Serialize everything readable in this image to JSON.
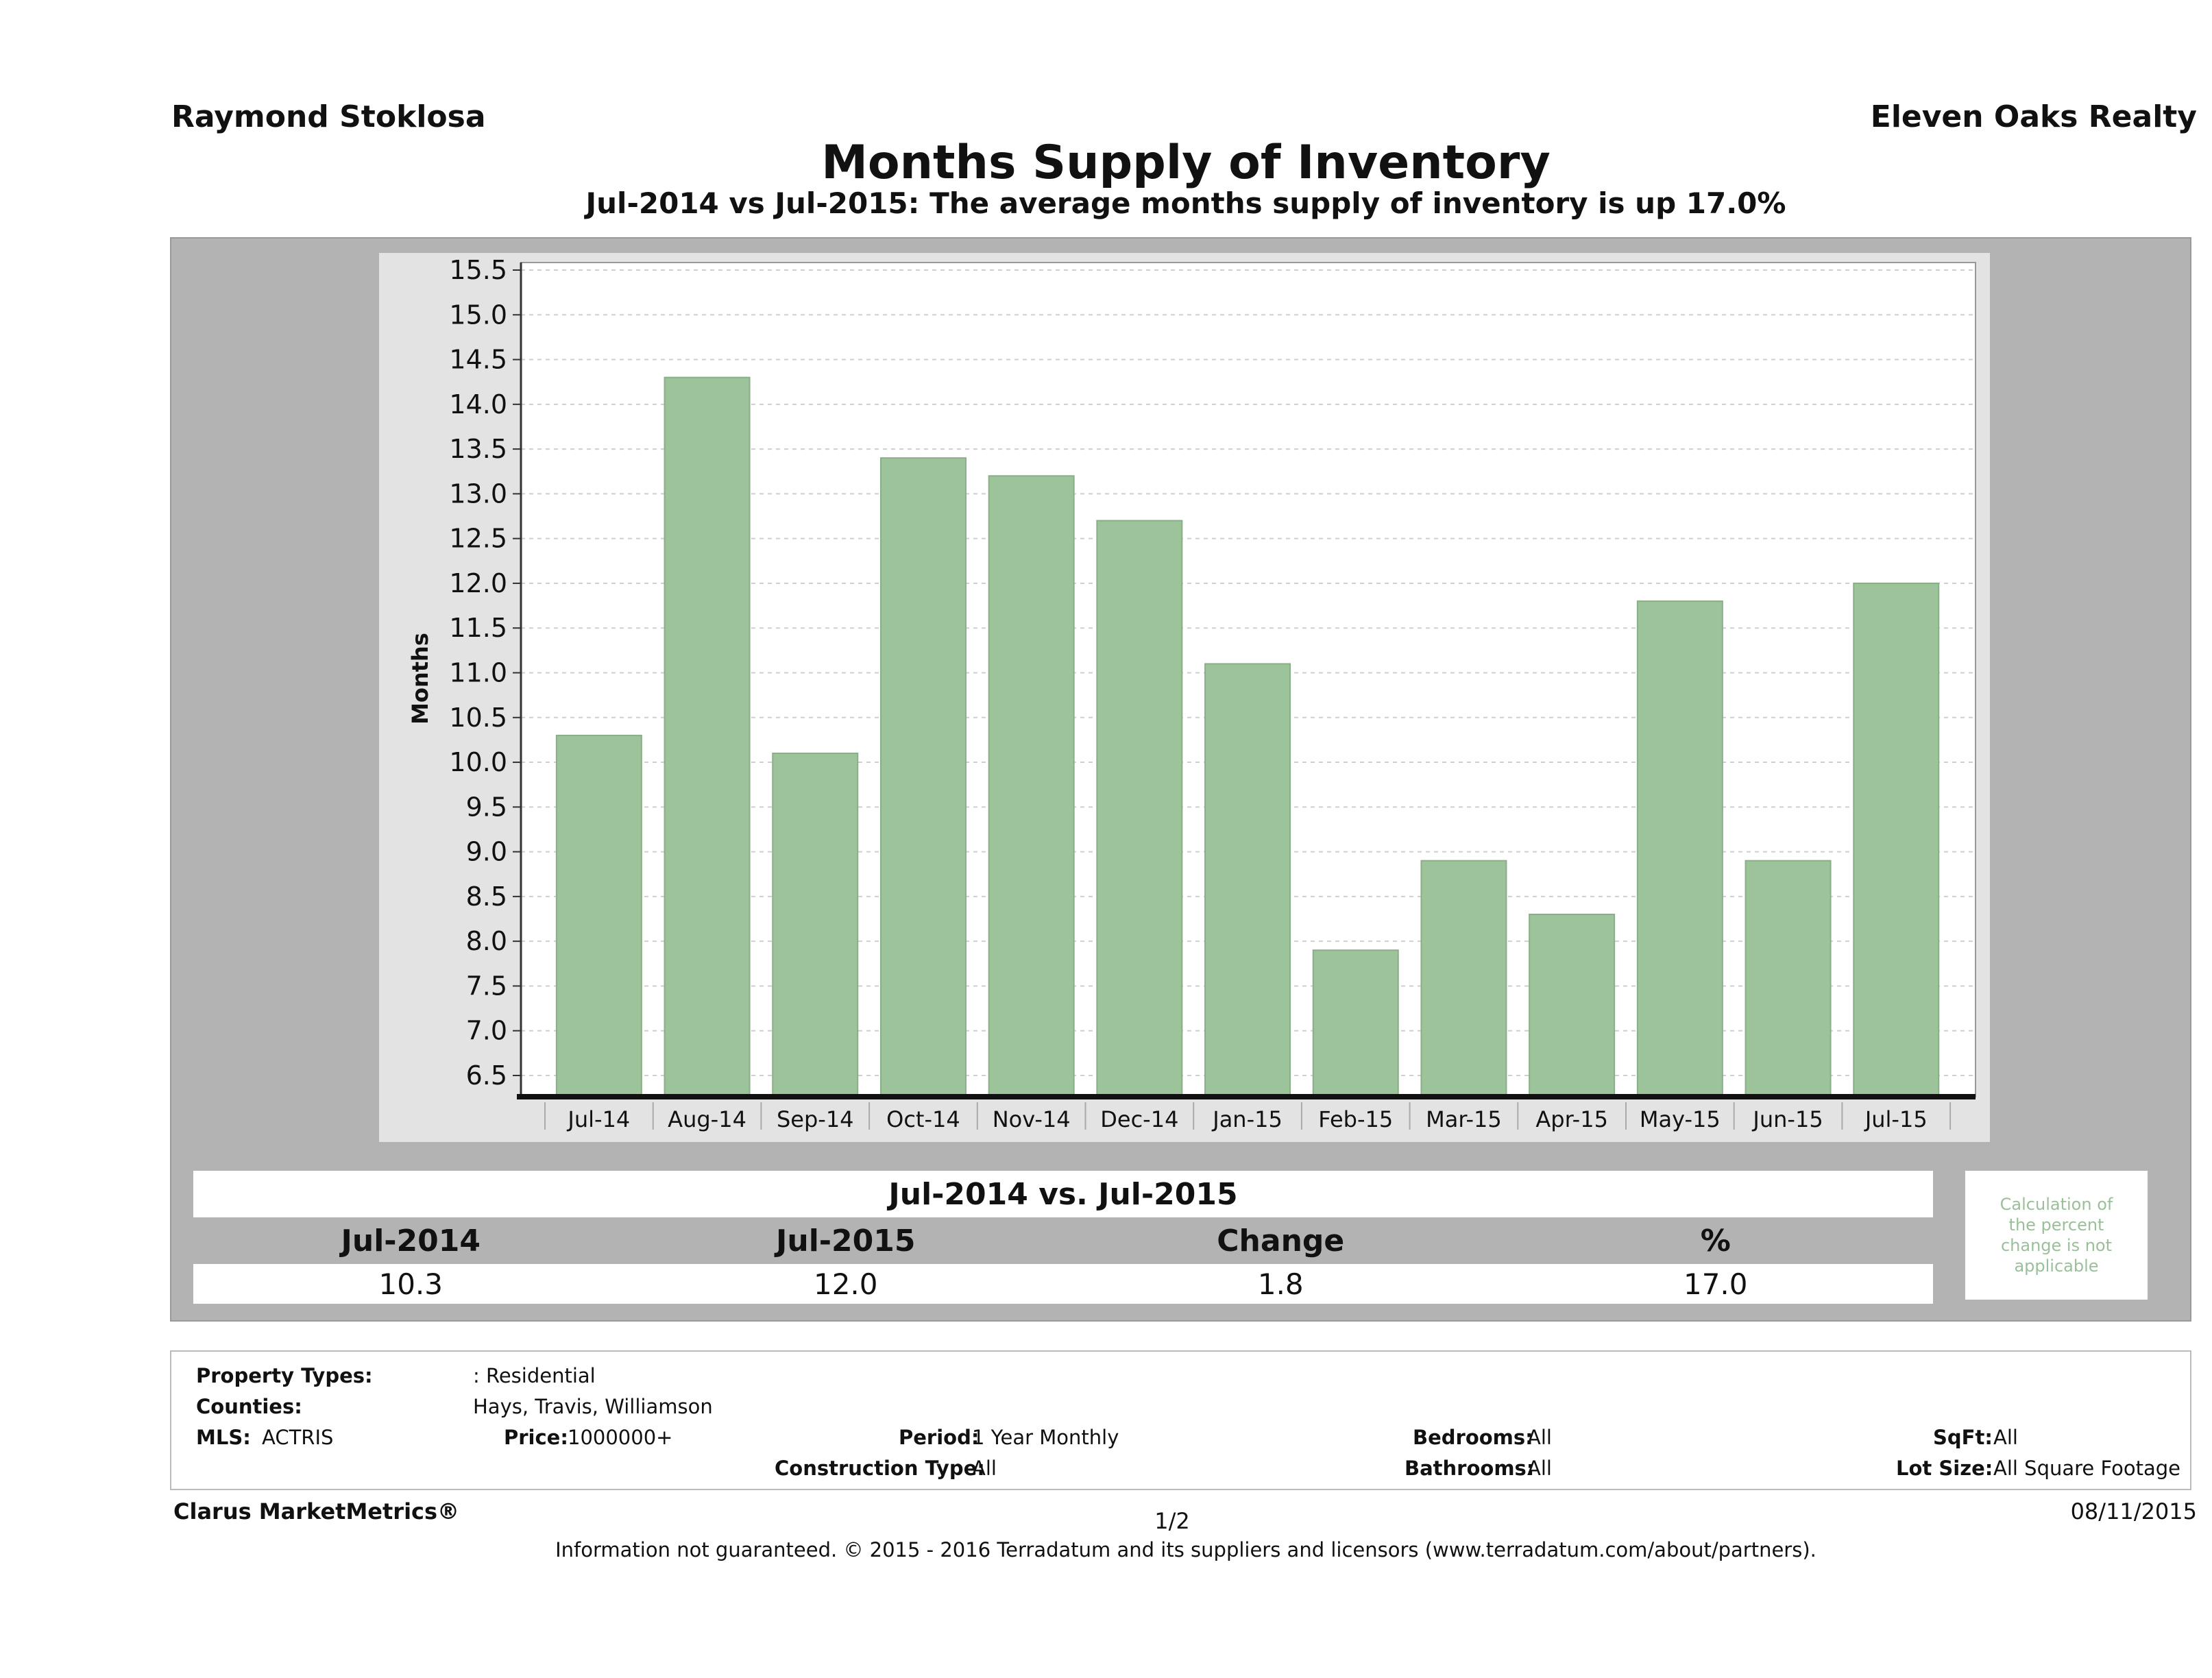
{
  "header": {
    "agent": "Raymond Stoklosa",
    "company": "Eleven Oaks Realty",
    "title": "Months Supply of Inventory",
    "subtitle": "Jul-2014 vs Jul-2015: The average months supply of inventory is up 17.0%"
  },
  "chart_data": {
    "type": "bar",
    "ylabel": "Months",
    "ylim": [
      6.5,
      15.5
    ],
    "yticks": [
      "15.5",
      "15.0",
      "14.5",
      "14.0",
      "13.5",
      "13.0",
      "12.5",
      "12.0",
      "11.5",
      "11.0",
      "10.5",
      "10.0",
      "9.5",
      "9.0",
      "8.5",
      "8.0",
      "7.5",
      "7.0",
      "6.5"
    ],
    "categories": [
      "Jul-14",
      "Aug-14",
      "Sep-14",
      "Oct-14",
      "Nov-14",
      "Dec-14",
      "Jan-15",
      "Feb-15",
      "Mar-15",
      "Apr-15",
      "May-15",
      "Jun-15",
      "Jul-15"
    ],
    "values": [
      10.3,
      14.3,
      10.1,
      13.4,
      13.2,
      12.7,
      11.1,
      7.9,
      8.9,
      8.3,
      11.8,
      8.9,
      12.0
    ],
    "bar_color": "#9dc39a",
    "grid": true
  },
  "summary": {
    "heading": "Jul-2014 vs. Jul-2015",
    "columns": [
      "Jul-2014",
      "Jul-2015",
      "Change",
      "%"
    ],
    "values": [
      "10.3",
      "12.0",
      "1.8",
      "17.0"
    ],
    "note": "Calculation of the percent change is not applicable"
  },
  "criteria": {
    "property_types_label": "Property Types:",
    "property_types_value": ": Residential",
    "counties_label": "Counties:",
    "counties_value": "Hays, Travis, Williamson",
    "mls_label": "MLS:",
    "mls_value": "ACTRIS",
    "price_label": "Price:",
    "price_value": "1000000+",
    "period_label": "Period:",
    "period_value": "1 Year Monthly",
    "construction_label": "Construction Type:",
    "construction_value": "All",
    "bedrooms_label": "Bedrooms:",
    "bedrooms_value": "All",
    "bathrooms_label": "Bathrooms:",
    "bathrooms_value": "All",
    "sqft_label": "SqFt:",
    "sqft_value": "All",
    "lotsize_label": "Lot Size:",
    "lotsize_value": "All Square Footage"
  },
  "footer": {
    "brand": "Clarus MarketMetrics®",
    "page": "1/2",
    "date": "08/11/2015",
    "disclaimer": "Information not guaranteed. © 2015 - 2016 Terradatum and its suppliers and licensors (www.terradatum.com/about/partners)."
  }
}
